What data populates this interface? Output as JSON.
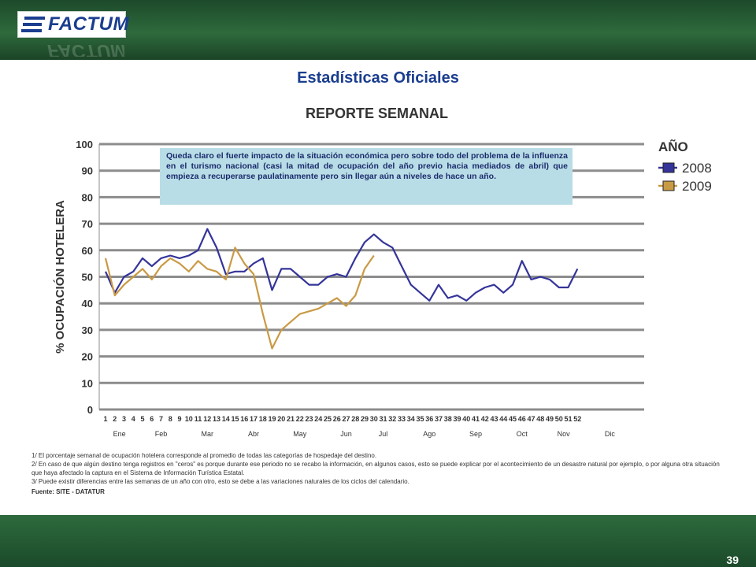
{
  "header": {
    "logo_text": "FACTUM"
  },
  "page_title": "Estadísticas Oficiales",
  "note": "Queda claro el fuerte impacto de la situación económica pero sobre todo del problema de la influenza en el turismo nacional (casi la mitad de ocupación del año previo hacia mediados de abril)  que empieza a recuperarse paulatinamente pero sin llegar aún a niveles de hace un año.",
  "footnotes": [
    "1/ El porcentaje semanal de ocupación hotelera corresponde al promedio de todas las categorías de hospedaje del destino.",
    "2/ En caso de que algún destino tenga registros en \"ceros\" es porque durante ese periodo no se recabo la información, en algunos casos, esto se puede explicar por el acontecimiento de un desastre natural por ejemplo, o por alguna otra situación",
    "que haya afectado la captura en el Sistema de Información Turística Estatal.",
    "3/ Puede existir diferencias entre las semanas de un año con otro, esto se debe a las variaciones naturales de los ciclos del calendario."
  ],
  "source": "Fuente: SITE - DATATUR",
  "page_number": "39",
  "colors": {
    "series_2008": "#34349a",
    "series_2009": "#c99a45",
    "title_blue": "#1a3d8f",
    "bar_green": "#2e6a3c"
  },
  "chart_data": {
    "type": "line",
    "title": "REPORTE SEMANAL",
    "ylabel": "% OCUPACIÓN HOTELERA",
    "ylim": [
      0,
      100
    ],
    "yticks": [
      0,
      10,
      20,
      30,
      40,
      50,
      60,
      70,
      80,
      90,
      100
    ],
    "grid": true,
    "legend": {
      "title": "AÑO",
      "position": "right"
    },
    "x": [
      1,
      2,
      3,
      4,
      5,
      6,
      7,
      8,
      9,
      10,
      11,
      12,
      13,
      14,
      15,
      16,
      17,
      18,
      19,
      20,
      21,
      22,
      23,
      24,
      25,
      26,
      27,
      28,
      29,
      30,
      31,
      32,
      33,
      34,
      35,
      36,
      37,
      38,
      39,
      40,
      41,
      42,
      43,
      44,
      45,
      46,
      47,
      48,
      49,
      50,
      51,
      52
    ],
    "x_tick_labels": [
      "1",
      "2",
      "3",
      "4",
      "5",
      "6",
      "7",
      "8",
      "9",
      "10",
      "11",
      "12",
      "13",
      "14",
      "15",
      "16",
      "17",
      "18",
      "19",
      "20",
      "21",
      "22",
      "23",
      "24",
      "25",
      "26",
      "27",
      "28",
      "29",
      "30",
      "31",
      "32",
      "33",
      "34",
      "35",
      "36",
      "37",
      "38",
      "39",
      "40",
      "41",
      "42",
      "43",
      "44",
      "45",
      "46",
      "47",
      "48",
      "49",
      "50",
      "51",
      "52"
    ],
    "months": [
      {
        "label": "Ene",
        "week": 2.5
      },
      {
        "label": "Feb",
        "week": 7
      },
      {
        "label": "Mar",
        "week": 12
      },
      {
        "label": "Abr",
        "week": 17
      },
      {
        "label": "May",
        "week": 22
      },
      {
        "label": "Jun",
        "week": 27
      },
      {
        "label": "Jul",
        "week": 31
      },
      {
        "label": "Ago",
        "week": 36
      },
      {
        "label": "Sep",
        "week": 41
      },
      {
        "label": "Oct",
        "week": 46
      },
      {
        "label": "Nov",
        "week": 50.5
      },
      {
        "label": "Dic",
        "week": 55.5
      }
    ],
    "series": [
      {
        "name": "2008",
        "color": "#34349a",
        "values": [
          52,
          44,
          50,
          52,
          57,
          54,
          57,
          58,
          57,
          58,
          60,
          68,
          61,
          51,
          52,
          52,
          55,
          57,
          45,
          53,
          53,
          50,
          47,
          47,
          50,
          51,
          50,
          57,
          63,
          66,
          63,
          61,
          54,
          47,
          44,
          41,
          47,
          42,
          43,
          41,
          44,
          46,
          47,
          44,
          47,
          56,
          49,
          50,
          49,
          46,
          46,
          53
        ]
      },
      {
        "name": "2009",
        "color": "#c99a45",
        "values": [
          57,
          43,
          47,
          50,
          53,
          49,
          54,
          57,
          55,
          52,
          56,
          53,
          52,
          49,
          61,
          55,
          51,
          36,
          23,
          30,
          33,
          36,
          37,
          38,
          40,
          42,
          39,
          43,
          53,
          58,
          null,
          null,
          null,
          null,
          null,
          null,
          null,
          null,
          null,
          null,
          null,
          null,
          null,
          null,
          null,
          null,
          null,
          null,
          null,
          null,
          null,
          null
        ]
      }
    ]
  }
}
